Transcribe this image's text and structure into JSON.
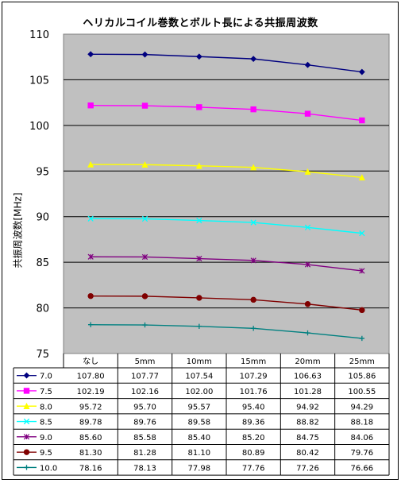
{
  "chart_data": {
    "type": "line",
    "title": "ヘリカルコイル巻数とボルト長による共振周波数",
    "xlabel": "",
    "ylabel": "共振周波数[MHz]",
    "ylim": [
      75,
      110
    ],
    "yticks": [
      "75",
      "80",
      "85",
      "90",
      "95",
      "100",
      "105",
      "110"
    ],
    "categories": [
      "なし",
      "5mm",
      "10mm",
      "15mm",
      "20mm",
      "25mm"
    ],
    "grid": true,
    "legend_placement": "table-left",
    "plot_background": "#c0c0c0",
    "series": [
      {
        "name": "7.0",
        "color": "#00007f",
        "marker": "diamond",
        "values": [
          107.8,
          107.77,
          107.54,
          107.29,
          106.63,
          105.86
        ],
        "labels": [
          "107.80",
          "107.77",
          "107.54",
          "107.29",
          "106.63",
          "105.86"
        ]
      },
      {
        "name": "7.5",
        "color": "#ff00ff",
        "marker": "square",
        "values": [
          102.19,
          102.16,
          102.0,
          101.76,
          101.28,
          100.55
        ],
        "labels": [
          "102.19",
          "102.16",
          "102.00",
          "101.76",
          "101.28",
          "100.55"
        ]
      },
      {
        "name": "8.0",
        "color": "#ffff00",
        "marker": "triangle",
        "values": [
          95.72,
          95.7,
          95.57,
          95.4,
          94.92,
          94.29
        ],
        "labels": [
          "95.72",
          "95.70",
          "95.57",
          "95.40",
          "94.92",
          "94.29"
        ]
      },
      {
        "name": "8.5",
        "color": "#00ffff",
        "marker": "x",
        "values": [
          89.78,
          89.76,
          89.58,
          89.36,
          88.82,
          88.18
        ],
        "labels": [
          "89.78",
          "89.76",
          "89.58",
          "89.36",
          "88.82",
          "88.18"
        ]
      },
      {
        "name": "9.0",
        "color": "#800080",
        "marker": "star",
        "values": [
          85.6,
          85.58,
          85.4,
          85.2,
          84.75,
          84.06
        ],
        "labels": [
          "85.60",
          "85.58",
          "85.40",
          "85.20",
          "84.75",
          "84.06"
        ]
      },
      {
        "name": "9.5",
        "color": "#800000",
        "marker": "circle",
        "values": [
          81.3,
          81.28,
          81.1,
          80.89,
          80.42,
          79.76
        ],
        "labels": [
          "81.30",
          "81.28",
          "81.10",
          "80.89",
          "80.42",
          "79.76"
        ]
      },
      {
        "name": "10.0",
        "color": "#008080",
        "marker": "plus",
        "values": [
          78.16,
          78.13,
          77.98,
          77.76,
          77.26,
          76.66
        ],
        "labels": [
          "78.16",
          "78.13",
          "77.98",
          "77.76",
          "77.26",
          "76.66"
        ]
      }
    ]
  }
}
